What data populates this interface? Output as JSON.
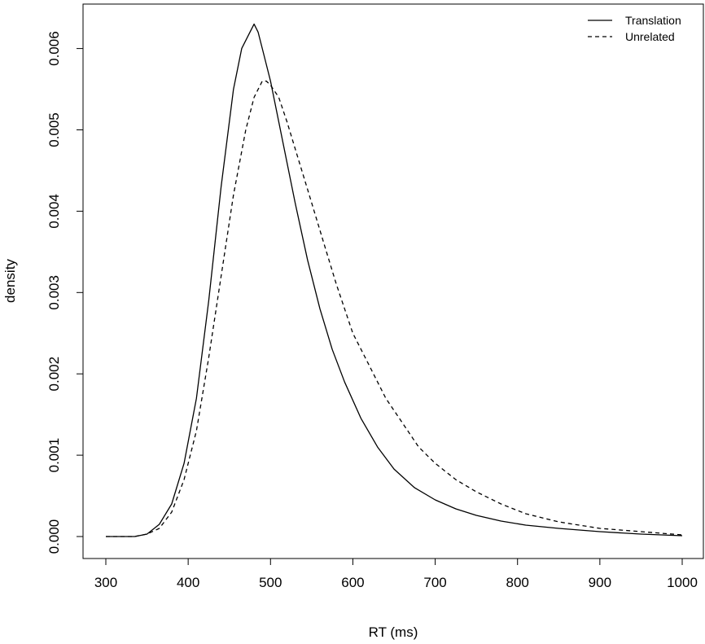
{
  "chart_data": {
    "type": "line",
    "title": "",
    "xlabel": "RT (ms)",
    "ylabel": "density",
    "xlim": [
      300,
      1000
    ],
    "ylim": [
      0,
      0.0063
    ],
    "grid": false,
    "legend_position": "top-right",
    "x_ticks": [
      "300",
      "400",
      "500",
      "600",
      "700",
      "800",
      "900",
      "1000"
    ],
    "y_ticks": [
      "0.000",
      "0.001",
      "0.002",
      "0.003",
      "0.004",
      "0.005",
      "0.006"
    ],
    "series": [
      {
        "name": "Translation",
        "style": "solid",
        "color": "#000000",
        "x": [
          300,
          335,
          350,
          365,
          380,
          395,
          410,
          425,
          440,
          455,
          465,
          475,
          480,
          485,
          490,
          500,
          510,
          520,
          530,
          545,
          560,
          575,
          590,
          610,
          630,
          650,
          675,
          700,
          725,
          750,
          780,
          810,
          850,
          900,
          950,
          1000
        ],
        "y": [
          0.0,
          0.0,
          3e-05,
          0.00015,
          0.0004,
          0.0009,
          0.0017,
          0.0029,
          0.0043,
          0.0055,
          0.006,
          0.0062,
          0.0063,
          0.0062,
          0.006,
          0.0056,
          0.0051,
          0.0046,
          0.0041,
          0.0034,
          0.0028,
          0.0023,
          0.0019,
          0.00145,
          0.0011,
          0.00083,
          0.0006,
          0.00045,
          0.00034,
          0.00026,
          0.00019,
          0.00014,
          0.0001,
          6e-05,
          3e-05,
          1e-05
        ]
      },
      {
        "name": "Unrelated",
        "style": "dashed",
        "color": "#000000",
        "x": [
          300,
          335,
          350,
          365,
          380,
          395,
          410,
          425,
          440,
          455,
          470,
          480,
          490,
          495,
          500,
          510,
          520,
          535,
          550,
          565,
          580,
          600,
          620,
          640,
          660,
          680,
          700,
          725,
          750,
          780,
          810,
          850,
          900,
          950,
          1000
        ],
        "y": [
          0.0,
          0.0,
          3e-05,
          0.0001,
          0.0003,
          0.0007,
          0.0013,
          0.0022,
          0.0032,
          0.0042,
          0.005,
          0.0054,
          0.0056,
          0.0056,
          0.00555,
          0.0054,
          0.0051,
          0.0046,
          0.0041,
          0.0036,
          0.0031,
          0.0025,
          0.0021,
          0.0017,
          0.0014,
          0.0011,
          0.0009,
          0.0007,
          0.00055,
          0.0004,
          0.00028,
          0.00018,
          0.0001,
          6e-05,
          2e-05
        ]
      }
    ]
  }
}
